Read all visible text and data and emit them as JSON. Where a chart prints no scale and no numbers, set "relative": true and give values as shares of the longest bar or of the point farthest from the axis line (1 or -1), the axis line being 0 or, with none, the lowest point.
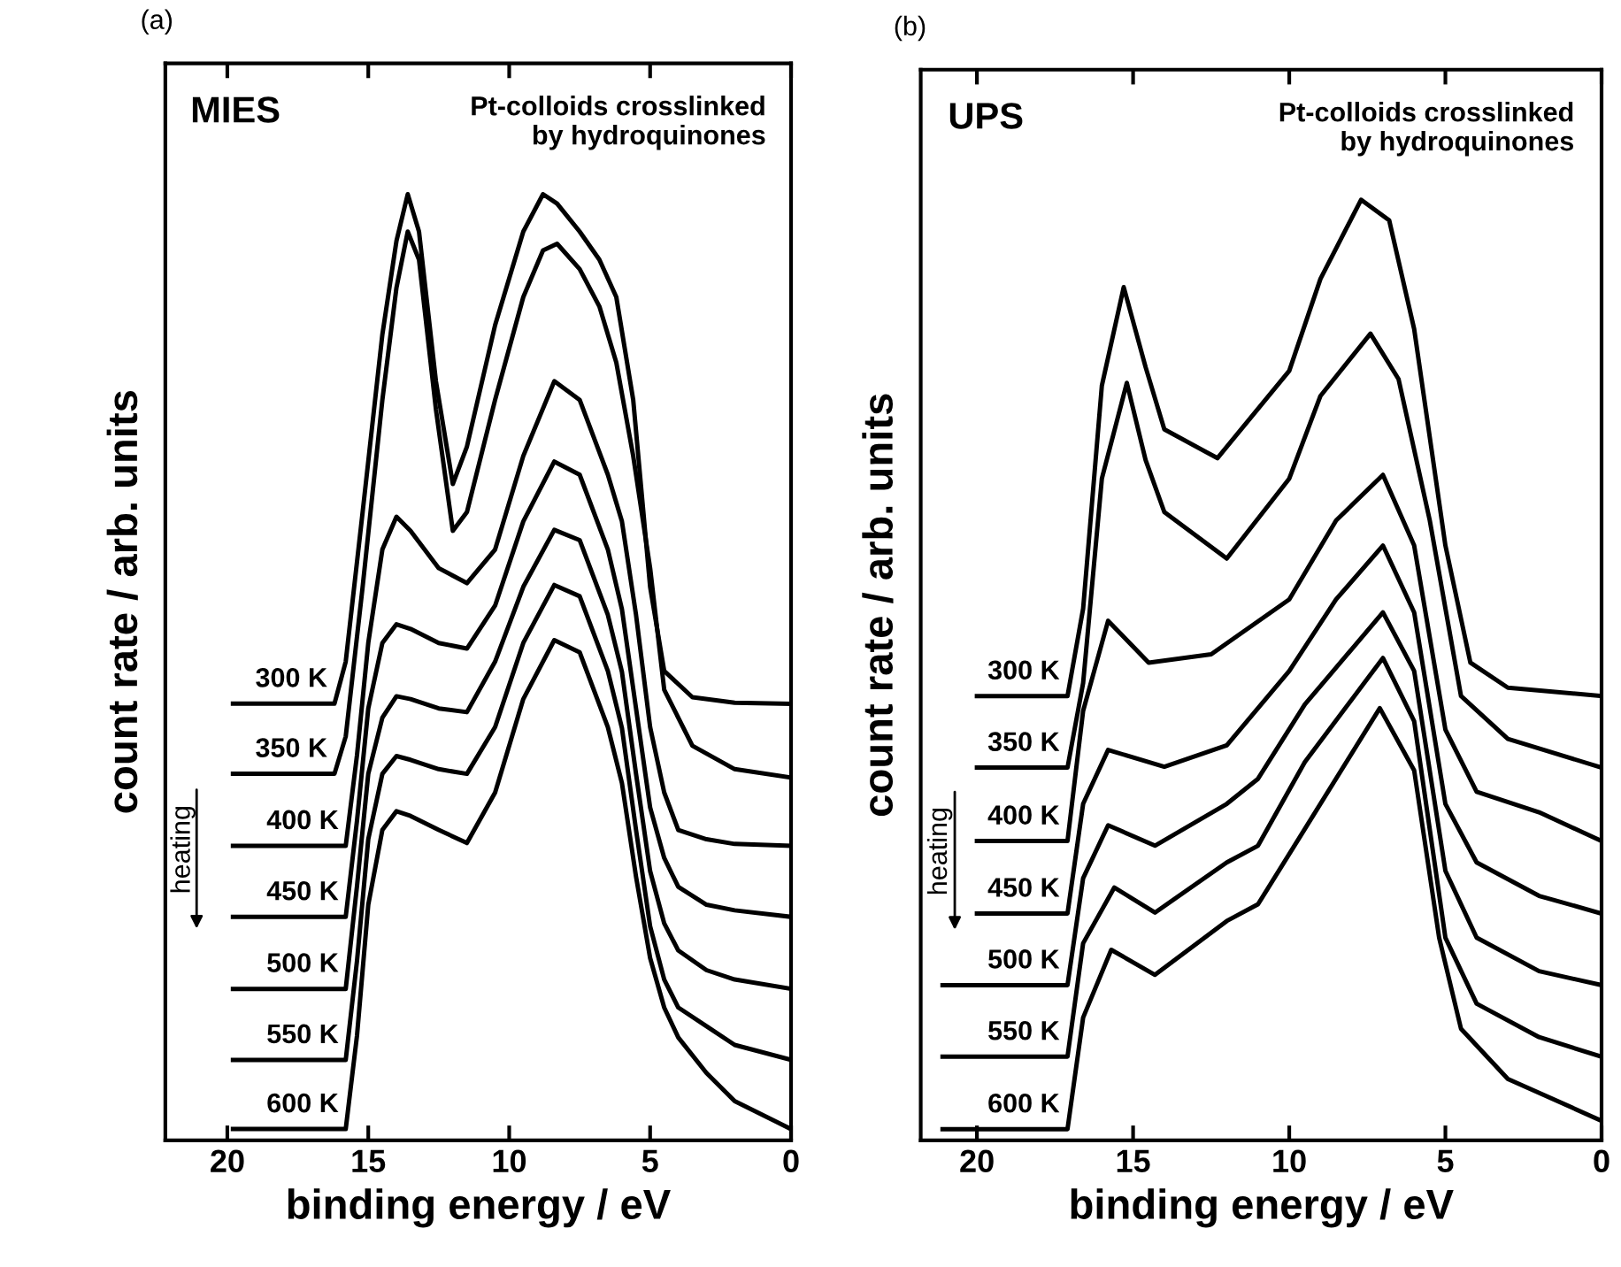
{
  "chart_data": [
    {
      "type": "line",
      "title": "(a)",
      "relative": true,
      "xlabel": "binding energy / eV",
      "ylabel": "count rate / arb. units",
      "xlim": [
        22.2,
        0
      ],
      "xticks": [
        20,
        15,
        10,
        5,
        0
      ],
      "tick_labels": "x",
      "grid": false,
      "legend": false,
      "color": "#000000",
      "annotations": [
        "MIES",
        "Pt-colloids crosslinked\nby hydroquinones",
        "heating"
      ],
      "series": [
        {
          "name": "300 K",
          "x": [
            19.8,
            16.2,
            15.8,
            15.2,
            14.5,
            14.0,
            13.6,
            13.2,
            12.6,
            12.0,
            11.5,
            10.5,
            9.5,
            8.8,
            8.3,
            7.5,
            6.8,
            6.2,
            5.6,
            5.0,
            4.5,
            3.5,
            2.0,
            0
          ],
          "values": [
            0.455,
            0.455,
            0.5,
            0.66,
            0.85,
            0.95,
            1.0,
            0.96,
            0.8,
            0.69,
            0.73,
            0.86,
            0.96,
            1.0,
            0.99,
            0.96,
            0.93,
            0.89,
            0.78,
            0.58,
            0.49,
            0.462,
            0.456,
            0.455
          ]
        },
        {
          "name": "350 K",
          "x": [
            19.8,
            16.2,
            15.8,
            15.2,
            14.5,
            14.0,
            13.6,
            13.2,
            12.6,
            12.0,
            11.5,
            10.5,
            9.5,
            8.8,
            8.3,
            7.5,
            6.8,
            6.2,
            5.6,
            5.0,
            4.5,
            3.5,
            2.0,
            0
          ],
          "values": [
            0.38,
            0.38,
            0.42,
            0.58,
            0.78,
            0.9,
            0.96,
            0.93,
            0.77,
            0.64,
            0.66,
            0.78,
            0.89,
            0.94,
            0.947,
            0.92,
            0.88,
            0.82,
            0.72,
            0.6,
            0.47,
            0.41,
            0.385,
            0.376
          ]
        },
        {
          "name": "400 K",
          "x": [
            19.8,
            15.8,
            15.4,
            15.0,
            14.5,
            14.0,
            13.5,
            12.5,
            11.5,
            10.5,
            9.5,
            8.4,
            7.5,
            6.5,
            6.0,
            5.5,
            5.0,
            4.5,
            4.0,
            3.0,
            2.0,
            0
          ],
          "values": [
            0.303,
            0.303,
            0.4,
            0.52,
            0.62,
            0.655,
            0.64,
            0.6,
            0.584,
            0.62,
            0.72,
            0.8,
            0.78,
            0.7,
            0.65,
            0.55,
            0.43,
            0.36,
            0.32,
            0.31,
            0.305,
            0.303
          ]
        },
        {
          "name": "450 K",
          "x": [
            19.8,
            15.8,
            15.4,
            15.0,
            14.5,
            14.0,
            13.5,
            12.5,
            11.5,
            10.5,
            9.5,
            8.4,
            7.5,
            6.5,
            6.0,
            5.5,
            5.0,
            4.5,
            4.0,
            3.0,
            2.0,
            0
          ],
          "values": [
            0.227,
            0.227,
            0.33,
            0.45,
            0.52,
            0.54,
            0.535,
            0.52,
            0.514,
            0.56,
            0.65,
            0.714,
            0.7,
            0.62,
            0.556,
            0.45,
            0.344,
            0.29,
            0.259,
            0.24,
            0.234,
            0.227
          ]
        },
        {
          "name": "500 K",
          "x": [
            19.8,
            15.8,
            15.4,
            15.0,
            14.5,
            14.0,
            13.5,
            12.5,
            11.5,
            10.5,
            9.5,
            8.4,
            7.5,
            6.5,
            6.0,
            5.5,
            5.0,
            4.5,
            4.0,
            3.0,
            2.0,
            0
          ],
          "values": [
            0.15,
            0.15,
            0.26,
            0.38,
            0.44,
            0.463,
            0.46,
            0.45,
            0.446,
            0.5,
            0.58,
            0.641,
            0.63,
            0.55,
            0.489,
            0.38,
            0.276,
            0.22,
            0.191,
            0.17,
            0.16,
            0.15
          ]
        },
        {
          "name": "550 K",
          "x": [
            19.8,
            15.8,
            15.4,
            15.0,
            14.5,
            14.0,
            13.5,
            12.5,
            11.5,
            10.5,
            9.5,
            8.4,
            7.5,
            6.5,
            6.0,
            5.5,
            5.0,
            4.5,
            4.0,
            3.0,
            2.0,
            0
          ],
          "values": [
            0.074,
            0.074,
            0.18,
            0.31,
            0.38,
            0.399,
            0.395,
            0.385,
            0.38,
            0.43,
            0.52,
            0.582,
            0.57,
            0.49,
            0.429,
            0.32,
            0.217,
            0.16,
            0.13,
            0.11,
            0.09,
            0.074
          ]
        },
        {
          "name": "600 K",
          "x": [
            19.8,
            15.8,
            15.4,
            15.0,
            14.5,
            14.0,
            13.5,
            12.5,
            11.5,
            10.5,
            9.5,
            8.4,
            7.5,
            6.5,
            6.0,
            5.5,
            5.0,
            4.5,
            4.0,
            3.0,
            2.0,
            0
          ],
          "values": [
            0,
            0,
            0.1,
            0.24,
            0.32,
            0.34,
            0.335,
            0.32,
            0.306,
            0.36,
            0.46,
            0.523,
            0.51,
            0.43,
            0.37,
            0.27,
            0.183,
            0.13,
            0.098,
            0.06,
            0.03,
            0
          ]
        }
      ]
    },
    {
      "type": "line",
      "title": "(b)",
      "relative": true,
      "xlabel": "binding energy / eV",
      "ylabel": "count rate / arb. units",
      "xlim": [
        21.8,
        0
      ],
      "xticks": [
        20,
        15,
        10,
        5,
        0
      ],
      "tick_labels": "x",
      "grid": false,
      "legend": false,
      "color": "#000000",
      "annotations": [
        "UPS",
        "Pt-colloids crosslinked\nby hydroquinones",
        "heating"
      ],
      "series": [
        {
          "name": "300 K",
          "x": [
            20.0,
            17.1,
            16.6,
            16.0,
            15.3,
            14.6,
            14.0,
            12.3,
            10.0,
            9.0,
            7.7,
            6.8,
            6.0,
            5.0,
            4.2,
            3.0,
            0
          ],
          "values": [
            0.466,
            0.466,
            0.56,
            0.8,
            0.906,
            0.82,
            0.753,
            0.722,
            0.816,
            0.915,
            1.0,
            0.978,
            0.861,
            0.628,
            0.502,
            0.475,
            0.466
          ]
        },
        {
          "name": "350 K",
          "x": [
            20.0,
            17.1,
            16.6,
            16.0,
            15.2,
            14.6,
            14.0,
            12.0,
            10.0,
            9.0,
            7.4,
            6.5,
            5.5,
            4.5,
            3.0,
            0
          ],
          "values": [
            0.389,
            0.389,
            0.48,
            0.7,
            0.803,
            0.72,
            0.664,
            0.614,
            0.7,
            0.789,
            0.856,
            0.807,
            0.655,
            0.466,
            0.42,
            0.389
          ]
        },
        {
          "name": "400 K",
          "x": [
            20.0,
            17.1,
            16.6,
            15.8,
            14.5,
            12.5,
            10.0,
            8.5,
            7.0,
            6.0,
            5.0,
            4.0,
            2.0,
            0
          ],
          "values": [
            0.31,
            0.31,
            0.45,
            0.547,
            0.502,
            0.511,
            0.57,
            0.655,
            0.704,
            0.628,
            0.43,
            0.363,
            0.341,
            0.31
          ]
        },
        {
          "name": "450 K",
          "x": [
            20.0,
            17.1,
            16.6,
            15.8,
            14.0,
            12.0,
            10.0,
            8.5,
            7.0,
            6.0,
            5.0,
            4.0,
            2.0,
            0
          ],
          "values": [
            0.232,
            0.232,
            0.35,
            0.408,
            0.39,
            0.413,
            0.493,
            0.57,
            0.628,
            0.556,
            0.35,
            0.287,
            0.251,
            0.232
          ]
        },
        {
          "name": "500 K",
          "x": [
            21.1,
            17.1,
            16.6,
            15.8,
            14.3,
            12.0,
            11.0,
            9.5,
            7.0,
            6.0,
            5.0,
            4.0,
            2.0,
            0
          ],
          "values": [
            0.155,
            0.155,
            0.27,
            0.327,
            0.305,
            0.35,
            0.377,
            0.457,
            0.556,
            0.493,
            0.278,
            0.206,
            0.17,
            0.155
          ]
        },
        {
          "name": "550 K",
          "x": [
            21.1,
            17.1,
            16.6,
            15.6,
            14.3,
            12.0,
            11.0,
            9.5,
            7.0,
            6.0,
            5.0,
            4.0,
            2.0,
            0
          ],
          "values": [
            0.078,
            0.078,
            0.2,
            0.26,
            0.233,
            0.287,
            0.305,
            0.395,
            0.507,
            0.439,
            0.206,
            0.135,
            0.099,
            0.078
          ]
        },
        {
          "name": "600 K",
          "x": [
            21.1,
            17.1,
            16.6,
            15.7,
            14.3,
            12.0,
            11.0,
            9.5,
            7.1,
            6.0,
            5.2,
            4.5,
            3.0,
            0
          ],
          "values": [
            0,
            0,
            0.12,
            0.193,
            0.166,
            0.224,
            0.242,
            0.323,
            0.453,
            0.386,
            0.206,
            0.108,
            0.054,
            0.009
          ]
        }
      ]
    }
  ]
}
